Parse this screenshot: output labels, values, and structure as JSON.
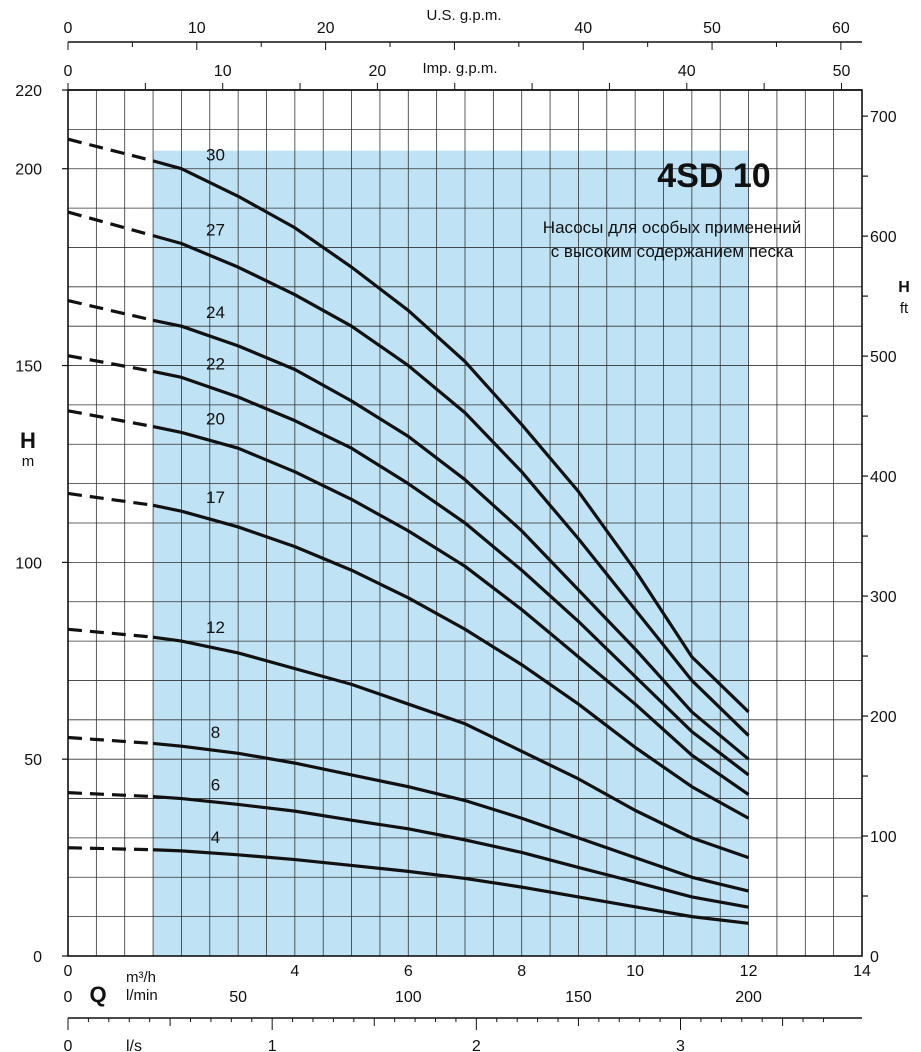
{
  "chart_data": {
    "type": "line",
    "title": "4SD 10",
    "subtitle_lines": [
      "Насосы для особых применений",
      "с высоким содержанием песка"
    ],
    "y_axis_left": {
      "label": "H",
      "unit": "m",
      "range": [
        0,
        220
      ],
      "ticks": [
        "0",
        "50",
        "100",
        "150",
        "200",
        "220"
      ]
    },
    "y_axis_right": {
      "label": "H",
      "unit": "ft",
      "ticks": [
        "0",
        "100",
        "200",
        "300",
        "400",
        "500",
        "600",
        "700"
      ]
    },
    "x_axis_main": {
      "label": "Q",
      "unit": "m³/h",
      "range": [
        0,
        14
      ],
      "ticks": [
        "0",
        "4",
        "6",
        "8",
        "10",
        "12",
        "14"
      ]
    },
    "x_axis_lmin": {
      "unit": "l/min",
      "ticks": [
        "0",
        "50",
        "100",
        "150",
        "200"
      ]
    },
    "x_axis_ls": {
      "unit": "l/s",
      "ticks": [
        "0",
        "1",
        "2",
        "3"
      ]
    },
    "x_axis_top_us": {
      "unit": "U.S. g.p.m.",
      "ticks": [
        "0",
        "10",
        "20",
        "40",
        "50",
        "60"
      ]
    },
    "x_axis_top_imp": {
      "unit": "Imp. g.p.m.",
      "ticks": [
        "0",
        "10",
        "20",
        "40",
        "50"
      ]
    },
    "operating_range": {
      "q_min": 1.5,
      "q_max": 12,
      "color": "#bfe3f5"
    },
    "series": [
      {
        "name": "30",
        "dashed": [
          [
            0,
            207.5
          ],
          [
            1.5,
            202
          ]
        ],
        "values": [
          [
            1.5,
            202
          ],
          [
            2,
            200
          ],
          [
            3,
            193
          ],
          [
            4,
            185
          ],
          [
            5,
            175
          ],
          [
            6,
            164
          ],
          [
            7,
            151
          ],
          [
            8,
            135
          ],
          [
            9,
            118
          ],
          [
            10,
            98
          ],
          [
            11,
            76
          ],
          [
            12,
            62
          ]
        ]
      },
      {
        "name": "27",
        "dashed": [
          [
            0,
            189
          ],
          [
            1.5,
            183
          ]
        ],
        "values": [
          [
            1.5,
            183
          ],
          [
            2,
            181
          ],
          [
            3,
            175
          ],
          [
            4,
            168
          ],
          [
            5,
            160
          ],
          [
            6,
            150
          ],
          [
            7,
            138
          ],
          [
            8,
            123
          ],
          [
            9,
            106
          ],
          [
            10,
            88
          ],
          [
            11,
            70
          ],
          [
            12,
            56
          ]
        ]
      },
      {
        "name": "24",
        "dashed": [
          [
            0,
            166.5
          ],
          [
            1.5,
            161.5
          ]
        ],
        "values": [
          [
            1.5,
            161.5
          ],
          [
            2,
            160
          ],
          [
            3,
            155
          ],
          [
            4,
            149
          ],
          [
            5,
            141
          ],
          [
            6,
            132
          ],
          [
            7,
            121
          ],
          [
            8,
            108
          ],
          [
            9,
            93
          ],
          [
            10,
            78
          ],
          [
            11,
            62
          ],
          [
            12,
            50
          ]
        ]
      },
      {
        "name": "22",
        "dashed": [
          [
            0,
            152.5
          ],
          [
            1.5,
            148.5
          ]
        ],
        "values": [
          [
            1.5,
            148.5
          ],
          [
            2,
            147
          ],
          [
            3,
            142
          ],
          [
            4,
            136
          ],
          [
            5,
            129
          ],
          [
            6,
            120
          ],
          [
            7,
            110
          ],
          [
            8,
            98
          ],
          [
            9,
            85
          ],
          [
            10,
            71
          ],
          [
            11,
            57
          ],
          [
            12,
            46
          ]
        ]
      },
      {
        "name": "20",
        "dashed": [
          [
            0,
            138.5
          ],
          [
            1.5,
            134.5
          ]
        ],
        "values": [
          [
            1.5,
            134.5
          ],
          [
            2,
            133
          ],
          [
            3,
            129
          ],
          [
            4,
            123
          ],
          [
            5,
            116
          ],
          [
            6,
            108
          ],
          [
            7,
            99
          ],
          [
            8,
            88
          ],
          [
            9,
            76
          ],
          [
            10,
            64
          ],
          [
            11,
            51
          ],
          [
            12,
            41
          ]
        ]
      },
      {
        "name": "17",
        "dashed": [
          [
            0,
            117.5
          ],
          [
            1.5,
            114.5
          ]
        ],
        "values": [
          [
            1.5,
            114.5
          ],
          [
            2,
            113
          ],
          [
            3,
            109
          ],
          [
            4,
            104
          ],
          [
            5,
            98
          ],
          [
            6,
            91
          ],
          [
            7,
            83
          ],
          [
            8,
            74
          ],
          [
            9,
            64
          ],
          [
            10,
            53
          ],
          [
            11,
            43
          ],
          [
            12,
            35
          ]
        ]
      },
      {
        "name": "12",
        "dashed": [
          [
            0,
            83
          ],
          [
            1.5,
            81
          ]
        ],
        "values": [
          [
            1.5,
            81
          ],
          [
            2,
            80
          ],
          [
            3,
            77
          ],
          [
            4,
            73
          ],
          [
            5,
            69
          ],
          [
            6,
            64
          ],
          [
            7,
            59
          ],
          [
            8,
            52
          ],
          [
            9,
            45
          ],
          [
            10,
            37
          ],
          [
            11,
            30
          ],
          [
            12,
            25
          ]
        ]
      },
      {
        "name": "8",
        "dashed": [
          [
            0,
            55.5
          ],
          [
            1.5,
            54
          ]
        ],
        "values": [
          [
            1.5,
            54
          ],
          [
            2,
            53.3
          ],
          [
            3,
            51.5
          ],
          [
            4,
            49
          ],
          [
            5,
            46
          ],
          [
            6,
            43
          ],
          [
            7,
            39.5
          ],
          [
            8,
            35
          ],
          [
            9,
            30
          ],
          [
            10,
            25
          ],
          [
            11,
            20
          ],
          [
            12,
            16.5
          ]
        ]
      },
      {
        "name": "6",
        "dashed": [
          [
            0,
            41.5
          ],
          [
            1.5,
            40.5
          ]
        ],
        "values": [
          [
            1.5,
            40.5
          ],
          [
            2,
            40
          ],
          [
            3,
            38.5
          ],
          [
            4,
            36.8
          ],
          [
            5,
            34.5
          ],
          [
            6,
            32.3
          ],
          [
            7,
            29.5
          ],
          [
            8,
            26.3
          ],
          [
            9,
            22.5
          ],
          [
            10,
            18.8
          ],
          [
            11,
            15
          ],
          [
            12,
            12.4
          ]
        ]
      },
      {
        "name": "4",
        "dashed": [
          [
            0,
            27.5
          ],
          [
            1.5,
            27
          ]
        ],
        "values": [
          [
            1.5,
            27
          ],
          [
            2,
            26.7
          ],
          [
            3,
            25.7
          ],
          [
            4,
            24.5
          ],
          [
            5,
            23
          ],
          [
            6,
            21.5
          ],
          [
            7,
            19.7
          ],
          [
            8,
            17.5
          ],
          [
            9,
            15
          ],
          [
            10,
            12.5
          ],
          [
            11,
            10
          ],
          [
            12,
            8.3
          ]
        ]
      }
    ]
  }
}
